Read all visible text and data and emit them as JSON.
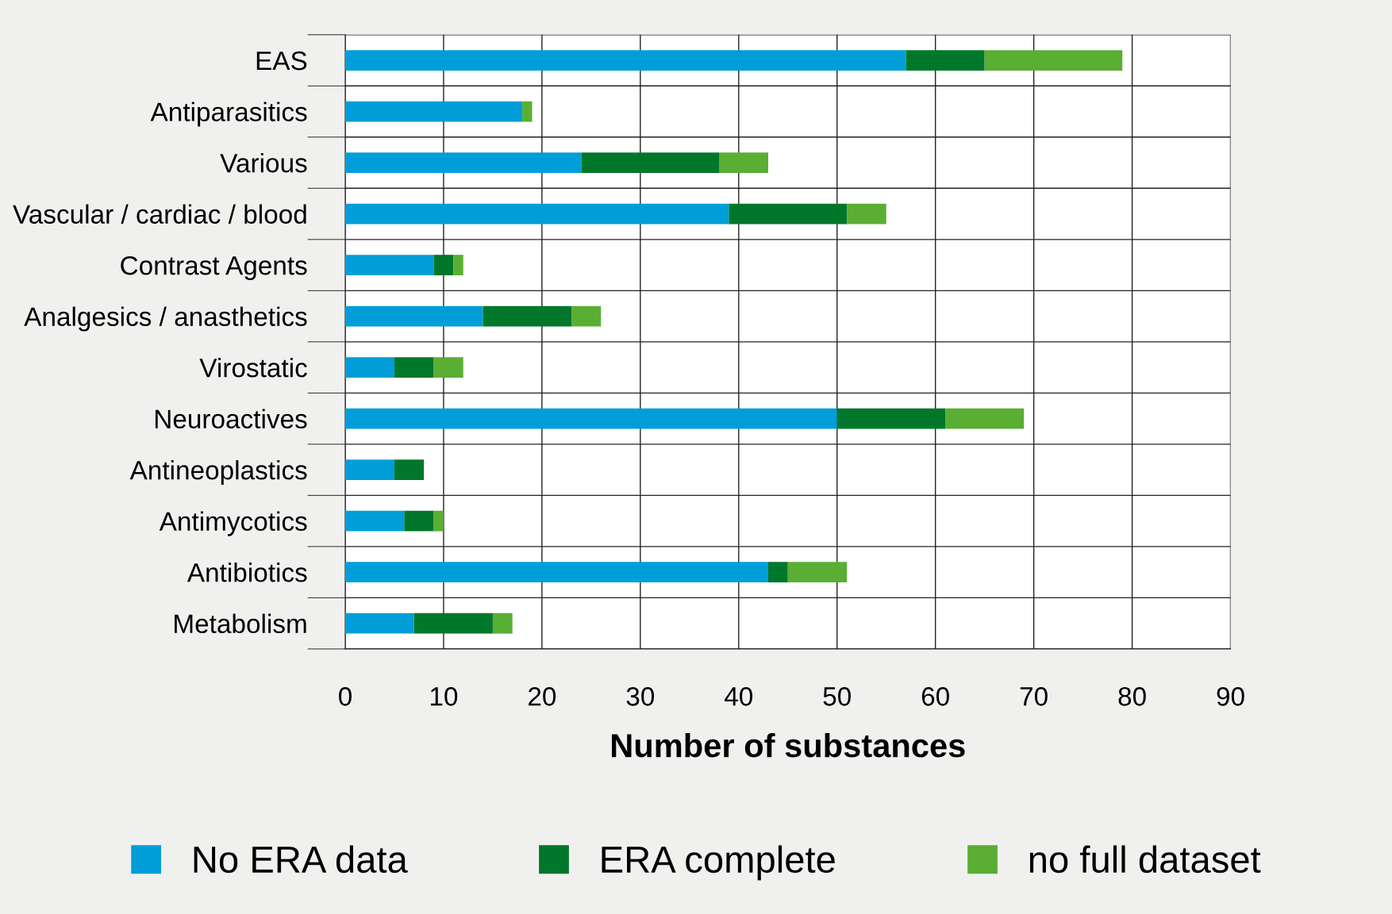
{
  "chart_data": {
    "type": "bar",
    "orientation": "horizontal",
    "stacked": true,
    "xlabel": "Number of substances",
    "categories": [
      "EAS",
      "Antiparasitics",
      "Various",
      "Vascular / cardiac / blood",
      "Contrast Agents",
      "Analgesics / anasthetics",
      "Virostatic",
      "Neuroactives",
      "Antineoplastics",
      "Antimycotics",
      "Antibiotics",
      "Metabolism"
    ],
    "series": [
      {
        "name": "No ERA data",
        "color": "#009ed8",
        "values": [
          57,
          18,
          24,
          39,
          9,
          14,
          5,
          50,
          5,
          6,
          43,
          7
        ]
      },
      {
        "name": "ERA complete",
        "color": "#00772b",
        "values": [
          8,
          0,
          14,
          12,
          2,
          9,
          4,
          11,
          3,
          3,
          2,
          8
        ]
      },
      {
        "name": "no full dataset",
        "color": "#5aae33",
        "values": [
          14,
          1,
          5,
          4,
          1,
          3,
          3,
          8,
          0,
          1,
          6,
          2
        ]
      }
    ],
    "xlim": [
      0,
      90
    ],
    "xticks": [
      0,
      10,
      20,
      30,
      40,
      50,
      60,
      70,
      80,
      90
    ],
    "grid": true,
    "legend": "bottom"
  }
}
